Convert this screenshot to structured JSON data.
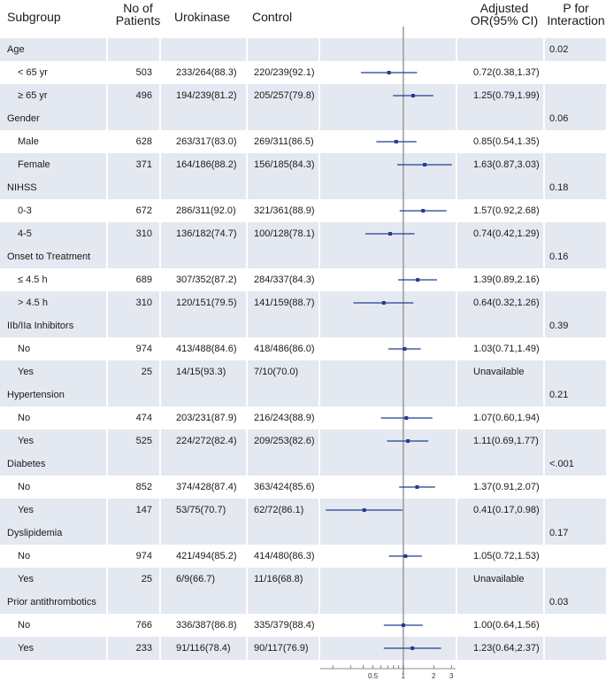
{
  "headers": {
    "subgroup": "Subgroup",
    "patients_line1": "No of",
    "patients_line2": "Patients",
    "urokinase": "Urokinase",
    "control": "Control",
    "or_line1": "Adjusted",
    "or_line2": "OR(95% CI)",
    "p_line1": "P for",
    "p_line2": "Interaction"
  },
  "colors": {
    "band": "#e4e8f0",
    "marker": "#1f3f8f",
    "reference_line": "#9a9a9a"
  },
  "chart_data": {
    "type": "forest",
    "x_scale": "log",
    "reference_value": 1,
    "xlim": [
      0.15,
      3.3
    ],
    "x_ticks": [
      0.5,
      1,
      2,
      3
    ],
    "x_tick_labels": [
      "0.5",
      "1",
      "2",
      "3"
    ],
    "rows": [
      {
        "kind": "group",
        "label": "Age",
        "p": "0.02"
      },
      {
        "kind": "sub",
        "label": "< 65 yr",
        "n": "503",
        "urokinase": "233/264(88.3)",
        "control": "220/239(92.1)",
        "or_text": "0.72(0.38,1.37)",
        "or": 0.72,
        "lo": 0.38,
        "hi": 1.37
      },
      {
        "kind": "sub",
        "label": "≥ 65 yr",
        "n": "496",
        "urokinase": "194/239(81.2)",
        "control": "205/257(79.8)",
        "or_text": "1.25(0.79,1.99)",
        "or": 1.25,
        "lo": 0.79,
        "hi": 1.99
      },
      {
        "kind": "group",
        "label": "Gender",
        "p": "0.06"
      },
      {
        "kind": "sub",
        "label": "Male",
        "n": "628",
        "urokinase": "263/317(83.0)",
        "control": "269/311(86.5)",
        "or_text": "0.85(0.54,1.35)",
        "or": 0.85,
        "lo": 0.54,
        "hi": 1.35
      },
      {
        "kind": "sub",
        "label": "Female",
        "n": "371",
        "urokinase": "164/186(88.2)",
        "control": "156/185(84.3)",
        "or_text": "1.63(0.87,3.03)",
        "or": 1.63,
        "lo": 0.87,
        "hi": 3.03
      },
      {
        "kind": "group",
        "label": "NIHSS",
        "p": "0.18"
      },
      {
        "kind": "sub",
        "label": "0-3",
        "n": "672",
        "urokinase": "286/311(92.0)",
        "control": "321/361(88.9)",
        "or_text": "1.57(0.92,2.68)",
        "or": 1.57,
        "lo": 0.92,
        "hi": 2.68
      },
      {
        "kind": "sub",
        "label": "4-5",
        "n": "310",
        "urokinase": "136/182(74.7)",
        "control": "100/128(78.1)",
        "or_text": "0.74(0.42,1.29)",
        "or": 0.74,
        "lo": 0.42,
        "hi": 1.29
      },
      {
        "kind": "group",
        "label": "Onset to Treatment",
        "p": "0.16"
      },
      {
        "kind": "sub",
        "label": "≤ 4.5 h",
        "n": "689",
        "urokinase": "307/352(87.2)",
        "control": "284/337(84.3)",
        "or_text": "1.39(0.89,2.16)",
        "or": 1.39,
        "lo": 0.89,
        "hi": 2.16
      },
      {
        "kind": "sub",
        "label": "> 4.5 h",
        "n": "310",
        "urokinase": "120/151(79.5)",
        "control": "141/159(88.7)",
        "or_text": "0.64(0.32,1.26)",
        "or": 0.64,
        "lo": 0.32,
        "hi": 1.26
      },
      {
        "kind": "group",
        "label": "IIb/IIa Inhibitors",
        "p": "0.39"
      },
      {
        "kind": "sub",
        "label": "No",
        "n": "974",
        "urokinase": "413/488(84.6)",
        "control": "418/486(86.0)",
        "or_text": "1.03(0.71,1.49)",
        "or": 1.03,
        "lo": 0.71,
        "hi": 1.49
      },
      {
        "kind": "sub",
        "label": "Yes",
        "n": "25",
        "urokinase": "14/15(93.3)",
        "control": "7/10(70.0)",
        "or_text": "Unavailable",
        "or": null,
        "lo": null,
        "hi": null
      },
      {
        "kind": "group",
        "label": "Hypertension",
        "p": "0.21"
      },
      {
        "kind": "sub",
        "label": "No",
        "n": "474",
        "urokinase": "203/231(87.9)",
        "control": "216/243(88.9)",
        "or_text": "1.07(0.60,1.94)",
        "or": 1.07,
        "lo": 0.6,
        "hi": 1.94
      },
      {
        "kind": "sub",
        "label": "Yes",
        "n": "525",
        "urokinase": "224/272(82.4)",
        "control": "209/253(82.6)",
        "or_text": "1.11(0.69,1.77)",
        "or": 1.11,
        "lo": 0.69,
        "hi": 1.77
      },
      {
        "kind": "group",
        "label": "Diabetes",
        "p": "<.001"
      },
      {
        "kind": "sub",
        "label": "No",
        "n": "852",
        "urokinase": "374/428(87.4)",
        "control": "363/424(85.6)",
        "or_text": "1.37(0.91,2.07)",
        "or": 1.37,
        "lo": 0.91,
        "hi": 2.07
      },
      {
        "kind": "sub",
        "label": "Yes",
        "n": "147",
        "urokinase": "53/75(70.7)",
        "control": "62/72(86.1)",
        "or_text": "0.41(0.17,0.98)",
        "or": 0.41,
        "lo": 0.17,
        "hi": 0.98
      },
      {
        "kind": "group",
        "label": "Dyslipidemia",
        "p": "0.17"
      },
      {
        "kind": "sub",
        "label": "No",
        "n": "974",
        "urokinase": "421/494(85.2)",
        "control": "414/480(86.3)",
        "or_text": "1.05(0.72,1.53)",
        "or": 1.05,
        "lo": 0.72,
        "hi": 1.53
      },
      {
        "kind": "sub",
        "label": "Yes",
        "n": "25",
        "urokinase": "6/9(66.7)",
        "control": "11/16(68.8)",
        "or_text": "Unavailable",
        "or": null,
        "lo": null,
        "hi": null
      },
      {
        "kind": "group",
        "label": "Prior antithrombotics",
        "p": "0.03"
      },
      {
        "kind": "sub",
        "label": "No",
        "n": "766",
        "urokinase": "336/387(86.8)",
        "control": "335/379(88.4)",
        "or_text": "1.00(0.64,1.56)",
        "or": 1.0,
        "lo": 0.64,
        "hi": 1.56
      },
      {
        "kind": "sub",
        "label": "Yes",
        "n": "233",
        "urokinase": "91/116(78.4)",
        "control": "90/117(76.9)",
        "or_text": "1.23(0.64,2.37)",
        "or": 1.23,
        "lo": 0.64,
        "hi": 2.37
      }
    ]
  }
}
